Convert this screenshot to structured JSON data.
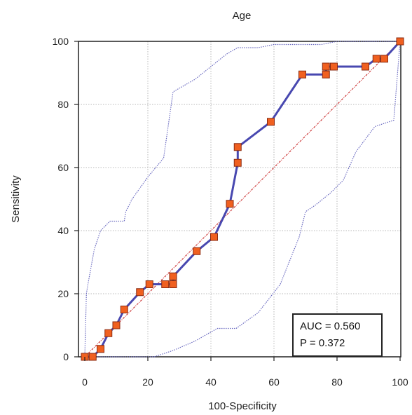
{
  "chart_data": {
    "type": "line",
    "title": "Age",
    "xlabel": "100-Specificity",
    "ylabel": "Sensitivity",
    "xlim": [
      0,
      100
    ],
    "ylim": [
      0,
      100
    ],
    "xticks": [
      0,
      20,
      40,
      60,
      80,
      100
    ],
    "yticks": [
      0,
      20,
      40,
      60,
      80,
      100
    ],
    "grid": true,
    "annotations": [
      "AUC = 0.560",
      "P = 0.372"
    ],
    "colors": {
      "roc": "#4848b0",
      "marker_fill": "#f06020",
      "marker_stroke": "#8a2a10",
      "diagonal": "#cc3333",
      "ci": "#6a6ac0",
      "grid": "#b8b8b8"
    },
    "series": [
      {
        "kind": "roc",
        "x": [
          0,
          2.5,
          5,
          7.5,
          10,
          12.5,
          17.5,
          20.5,
          25.5,
          28,
          28,
          35.5,
          41,
          46,
          48.5,
          48.5,
          59,
          69,
          76.5,
          76.5,
          79,
          89,
          92.5,
          95,
          100
        ],
        "y": [
          0,
          0,
          2.5,
          7.5,
          10,
          15,
          20.5,
          23,
          23,
          23,
          25.5,
          33.5,
          38,
          48.5,
          61.5,
          66.5,
          74.5,
          89.5,
          89.5,
          92,
          92,
          92,
          94.5,
          94.5,
          100
        ]
      },
      {
        "kind": "reference",
        "x": [
          0,
          100
        ],
        "y": [
          0,
          100
        ]
      },
      {
        "kind": "ci-upper",
        "x": [
          0,
          0.5,
          1,
          3,
          5,
          8,
          12.5,
          13,
          15,
          20,
          25,
          28,
          35,
          40,
          45,
          48.5,
          55,
          60,
          75,
          80,
          88,
          92,
          95,
          100
        ],
        "y": [
          0,
          20,
          23,
          34,
          40,
          43,
          43,
          46,
          50,
          57,
          63,
          84,
          88,
          92,
          96,
          98,
          98,
          99,
          99,
          100,
          100,
          100,
          100,
          100
        ]
      },
      {
        "kind": "ci-lower",
        "x": [
          0,
          22,
          28,
          35,
          42,
          48,
          55,
          62,
          68,
          70,
          73,
          78,
          82,
          86,
          92,
          98,
          100
        ],
        "y": [
          0,
          0,
          2,
          5,
          9,
          9,
          14,
          23,
          38,
          46,
          48,
          52,
          56,
          65,
          73,
          75,
          100
        ]
      }
    ]
  }
}
